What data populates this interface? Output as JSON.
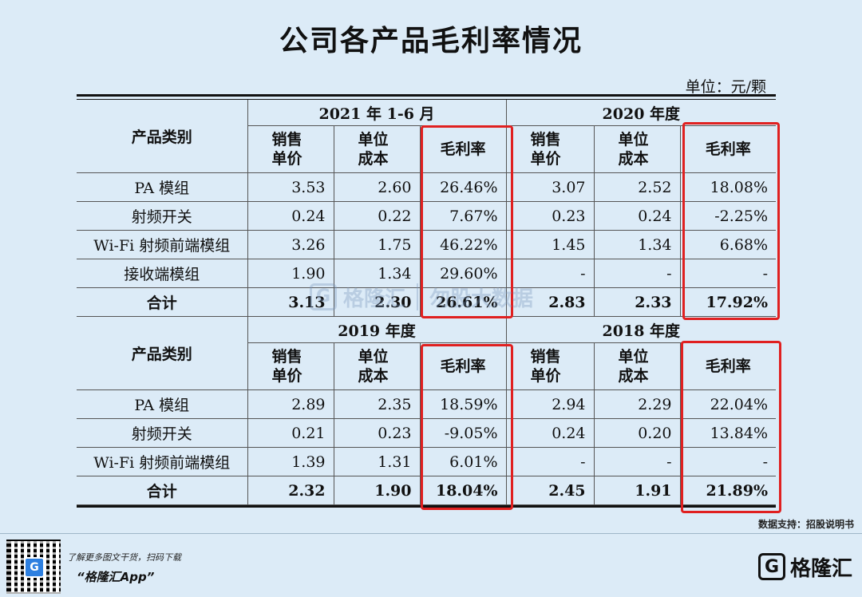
{
  "title": "公司各产品毛利率情况",
  "unit": "单位：元/颗",
  "headers": {
    "category": "产品类别",
    "price": "销售单价",
    "price_l1": "销售",
    "price_l2": "单价",
    "cost_l1": "单位",
    "cost_l2": "成本",
    "margin": "毛利率",
    "total": "合计"
  },
  "top": {
    "period_left": "2021 年 1-6 月",
    "period_right": "2020 年度",
    "rows": [
      {
        "name": "PA 模组",
        "a": [
          "3.53",
          "2.60",
          "26.46%"
        ],
        "b": [
          "3.07",
          "2.52",
          "18.08%"
        ]
      },
      {
        "name": "射频开关",
        "a": [
          "0.24",
          "0.22",
          "7.67%"
        ],
        "b": [
          "0.23",
          "0.24",
          "-2.25%"
        ]
      },
      {
        "name": "Wi-Fi 射频前端模组",
        "a": [
          "3.26",
          "1.75",
          "46.22%"
        ],
        "b": [
          "1.45",
          "1.34",
          "6.68%"
        ]
      },
      {
        "name": "接收端模组",
        "a": [
          "1.90",
          "1.34",
          "29.60%"
        ],
        "b": [
          "-",
          "-",
          "-"
        ]
      }
    ],
    "total": {
      "a": [
        "3.13",
        "2.30",
        "26.61%"
      ],
      "b": [
        "2.83",
        "2.33",
        "17.92%"
      ]
    }
  },
  "bottom": {
    "period_left": "2019 年度",
    "period_right": "2018 年度",
    "rows": [
      {
        "name": "PA 模组",
        "a": [
          "2.89",
          "2.35",
          "18.59%"
        ],
        "b": [
          "2.94",
          "2.29",
          "22.04%"
        ]
      },
      {
        "name": "射频开关",
        "a": [
          "0.21",
          "0.23",
          "-9.05%"
        ],
        "b": [
          "0.24",
          "0.20",
          "13.84%"
        ]
      },
      {
        "name": "Wi-Fi 射频前端模组",
        "a": [
          "1.39",
          "1.31",
          "6.01%"
        ],
        "b": [
          "-",
          "-",
          "-"
        ]
      }
    ],
    "total": {
      "a": [
        "2.32",
        "1.90",
        "18.04%"
      ],
      "b": [
        "2.45",
        "1.91",
        "21.89%"
      ]
    }
  },
  "source": "数据支持：招股说明书",
  "footer": {
    "line1": "了解更多图文干货，扫码下载",
    "line2": "“格隆汇App”",
    "brand": "格隆汇",
    "brand_logo_glyph": "G"
  },
  "watermark": {
    "logo_glyph": "G",
    "brand": "格隆汇",
    "tagline": "勿股大数据"
  },
  "colors": {
    "background": "#dcebf7",
    "highlight_box": "#e02020"
  }
}
